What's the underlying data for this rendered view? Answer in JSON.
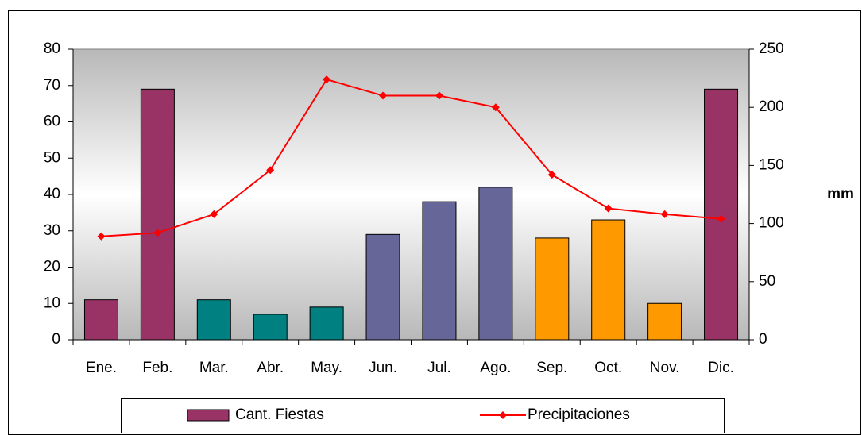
{
  "chart_data": {
    "type": "bar",
    "categories": [
      "Ene.",
      "Feb.",
      "Mar.",
      "Abr.",
      "May.",
      "Jun.",
      "Jul.",
      "Ago.",
      "Sep.",
      "Oct.",
      "Nov.",
      "Dic."
    ],
    "series": [
      {
        "name": "Cant. Fiestas",
        "type": "bar",
        "color": "#993366",
        "colors": [
          "#993366",
          "#993366",
          "#008080",
          "#008080",
          "#008080",
          "#666699",
          "#666699",
          "#666699",
          "#ff9900",
          "#ff9900",
          "#ff9900",
          "#993366"
        ],
        "values": [
          11,
          69,
          11,
          7,
          9,
          29,
          38,
          42,
          28,
          33,
          10,
          69
        ]
      },
      {
        "name": "Precipitaciones",
        "type": "line",
        "axis": "y2",
        "color": "#ff0000",
        "values": [
          89,
          92,
          108,
          146,
          224,
          210,
          210,
          200,
          142,
          113,
          108,
          104
        ]
      }
    ],
    "y2label": "mm",
    "ylim": [
      0,
      80
    ],
    "yticks": [
      0,
      10,
      20,
      30,
      40,
      50,
      60,
      70,
      80
    ],
    "y2lim": [
      0,
      250
    ],
    "y2ticks": [
      0,
      50,
      100,
      150,
      200,
      250
    ],
    "legend": "bottom"
  }
}
